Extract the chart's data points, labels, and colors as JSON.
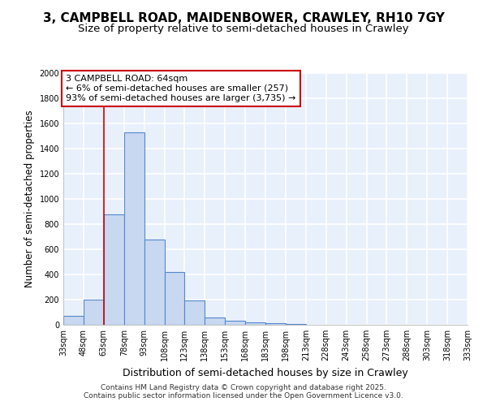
{
  "title_line1": "3, CAMPBELL ROAD, MAIDENBOWER, CRAWLEY, RH10 7GY",
  "title_line2": "Size of property relative to semi-detached houses in Crawley",
  "xlabel": "Distribution of semi-detached houses by size in Crawley",
  "ylabel": "Number of semi-detached properties",
  "bin_edges": [
    33,
    48,
    63,
    78,
    93,
    108,
    123,
    138,
    153,
    168,
    183,
    198,
    213,
    228,
    243,
    258,
    273,
    288,
    303,
    318,
    333
  ],
  "bar_heights": [
    70,
    200,
    880,
    1530,
    680,
    420,
    195,
    60,
    30,
    20,
    15,
    5,
    2,
    1,
    1,
    0,
    0,
    0,
    0,
    0
  ],
  "bar_color": "#c8d8f0",
  "bar_edge_color": "#5588cc",
  "vline_x": 63,
  "vline_color": "#cc0000",
  "annotation_text": "3 CAMPBELL ROAD: 64sqm\n← 6% of semi-detached houses are smaller (257)\n93% of semi-detached houses are larger (3,735) →",
  "annotation_box_color": "#cc0000",
  "ylim": [
    0,
    2000
  ],
  "yticks": [
    0,
    200,
    400,
    600,
    800,
    1000,
    1200,
    1400,
    1600,
    1800,
    2000
  ],
  "background_color": "#e8f0fc",
  "grid_color": "#ffffff",
  "footer_text": "Contains HM Land Registry data © Crown copyright and database right 2025.\nContains public sector information licensed under the Open Government Licence v3.0.",
  "title_fontsize": 11,
  "subtitle_fontsize": 9.5,
  "tick_label_fontsize": 7,
  "ylabel_fontsize": 8.5,
  "xlabel_fontsize": 9,
  "footer_fontsize": 6.5,
  "annotation_fontsize": 8
}
